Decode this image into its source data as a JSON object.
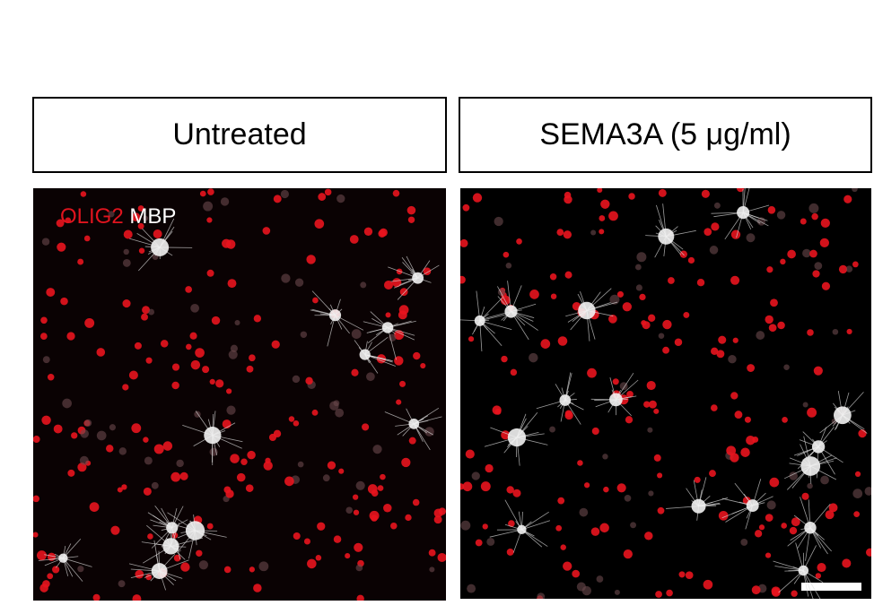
{
  "panels": [
    {
      "label": "Untreated"
    },
    {
      "label": "SEMA3A (5 μg/ml)"
    }
  ],
  "stain_legend": {
    "marker_1": "OLIG2",
    "marker_2": "MBP"
  }
}
